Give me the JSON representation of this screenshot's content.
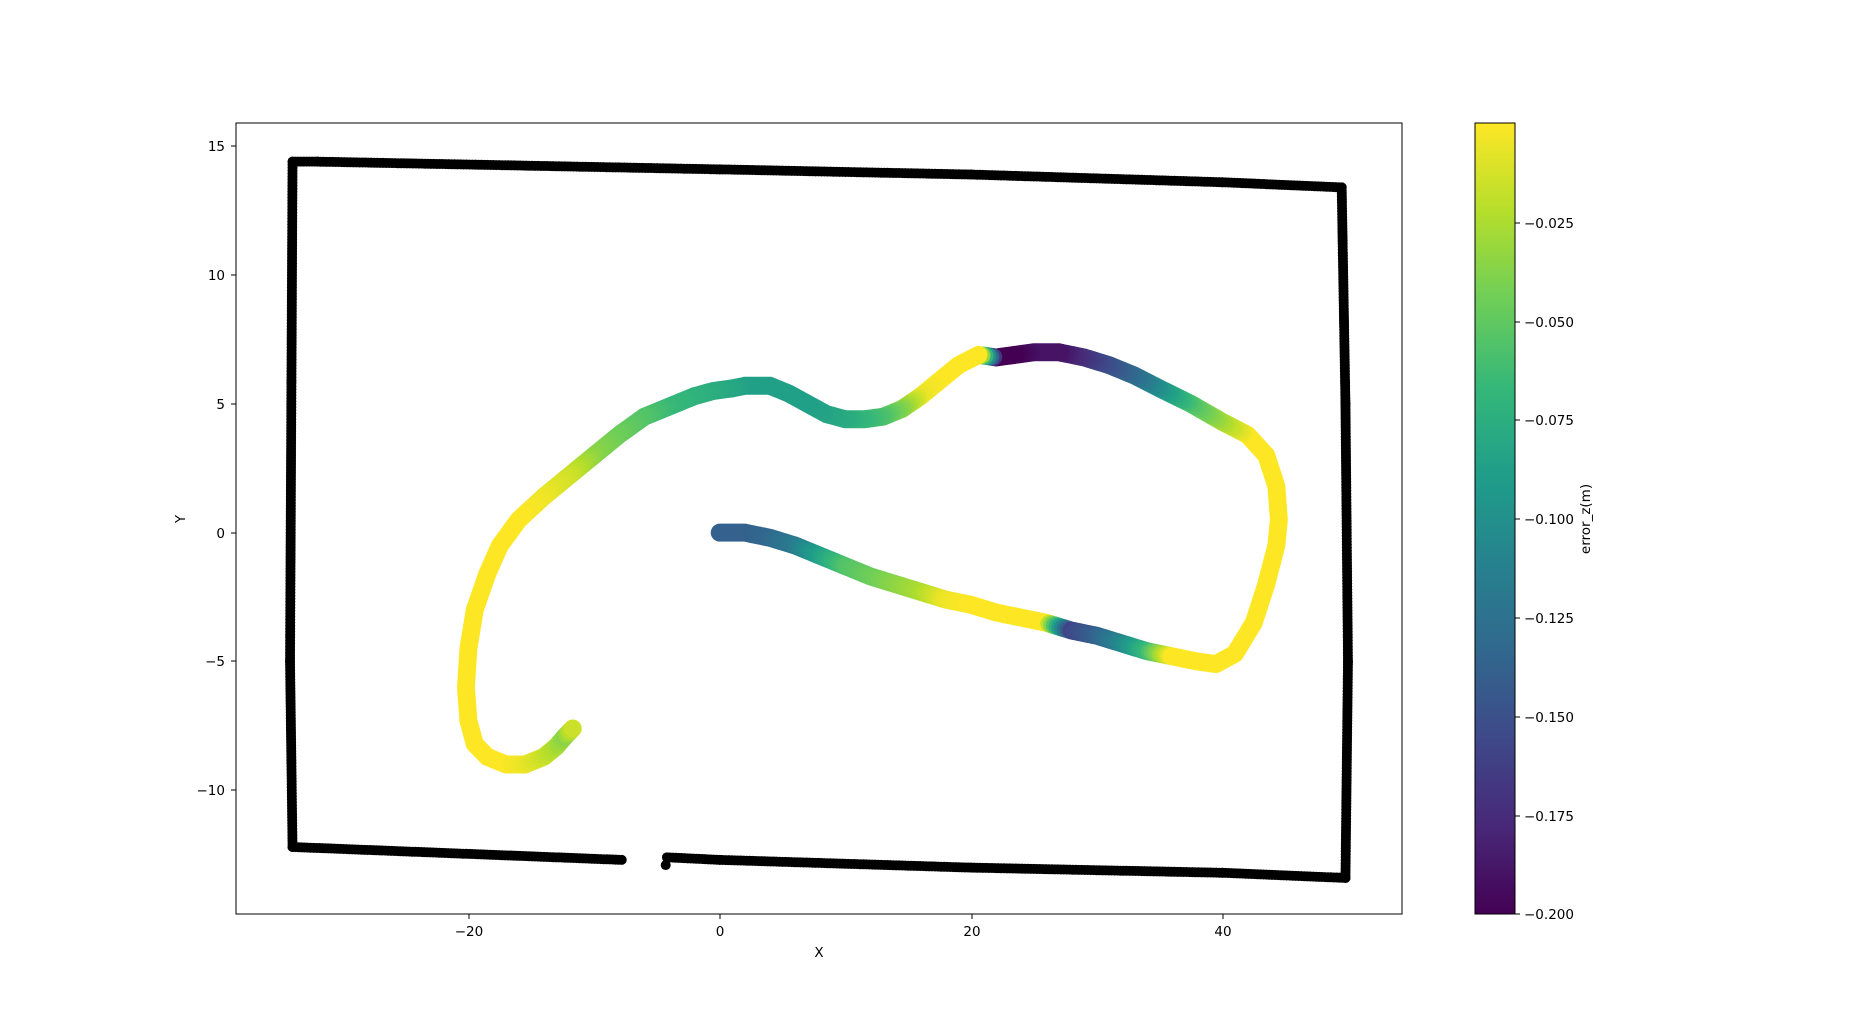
{
  "chart_data": [
    {
      "type": "scatter",
      "title": "",
      "xlabel": "X",
      "ylabel": "Y",
      "xlim": [
        -38.5,
        54.3
      ],
      "ylim": [
        -14.8,
        15.9
      ],
      "xticks": [
        -20,
        0,
        20,
        40
      ],
      "yticks": [
        -10,
        -5,
        0,
        5,
        10,
        15
      ],
      "grid": false,
      "colormap": "viridis",
      "series": [
        {
          "role": "boundary",
          "color": "#000000",
          "marker": "circle",
          "polylines": [
            {
              "x": [
                -7.8,
                -34.0,
                -34.2,
                -34.0,
                -32.0,
                0.0,
                20.0,
                40.0,
                49.5,
                49.8,
                50.0,
                49.8
              ],
              "y": [
                -12.7,
                -12.2,
                -5.0,
                14.4,
                14.4,
                14.1,
                13.9,
                13.6,
                13.4,
                5.0,
                -5.0,
                -13.4
              ]
            },
            {
              "x": [
                49.8,
                40.0,
                20.0,
                0.0,
                -4.2
              ],
              "y": [
                -13.4,
                -13.2,
                -13.0,
                -12.7,
                -12.6
              ]
            },
            {
              "x": [
                -4.3
              ],
              "y": [
                -12.9
              ]
            }
          ]
        },
        {
          "role": "trajectory",
          "colored_by": "error_z(m)",
          "x": [
            0.0,
            2.0,
            4.0,
            6.0,
            8.0,
            10.0,
            12.0,
            14.0,
            16.0,
            18.0,
            20.0,
            22.0,
            24.0,
            26.0,
            28.0,
            30.0,
            32.0,
            34.0,
            36.0,
            38.0,
            39.5,
            41.0,
            42.5,
            43.5,
            44.3,
            44.5,
            44.3,
            43.5,
            42.0,
            40.0,
            37.5,
            35.0,
            33.0,
            31.0,
            29.0,
            27.0,
            25.0,
            23.5,
            22.0,
            20.6,
            19.0,
            17.5,
            16.0,
            14.5,
            13.0,
            11.5,
            10.0,
            8.5,
            7.0,
            5.5,
            4.0,
            3.0,
            2.0,
            1.0,
            -0.5,
            -2.0,
            -4.0,
            -6.0,
            -8.0,
            -10.0,
            -12.0,
            -14.0,
            -16.0,
            -17.5,
            -18.5,
            -19.5,
            -20.0,
            -20.2,
            -20.0,
            -19.5,
            -18.5,
            -17.0,
            -15.5,
            -14.0,
            -13.0,
            -12.3,
            -11.7
          ],
          "y": [
            0.0,
            0.0,
            -0.2,
            -0.5,
            -0.9,
            -1.3,
            -1.7,
            -2.0,
            -2.3,
            -2.6,
            -2.8,
            -3.1,
            -3.3,
            -3.5,
            -3.8,
            -4.0,
            -4.3,
            -4.6,
            -4.8,
            -5.0,
            -5.1,
            -4.7,
            -3.5,
            -2.0,
            -0.5,
            0.5,
            1.8,
            3.0,
            3.8,
            4.3,
            5.0,
            5.6,
            6.1,
            6.5,
            6.8,
            7.0,
            7.0,
            6.9,
            6.8,
            6.9,
            6.5,
            5.9,
            5.3,
            4.8,
            4.5,
            4.4,
            4.4,
            4.6,
            5.0,
            5.4,
            5.7,
            5.7,
            5.7,
            5.6,
            5.5,
            5.3,
            4.9,
            4.5,
            3.8,
            3.0,
            2.2,
            1.4,
            0.5,
            -0.5,
            -1.6,
            -3.0,
            -4.5,
            -6.0,
            -7.3,
            -8.2,
            -8.7,
            -9.0,
            -9.0,
            -8.7,
            -8.3,
            -7.9,
            -7.6
          ],
          "values": [
            -0.14,
            -0.14,
            -0.135,
            -0.12,
            -0.09,
            -0.06,
            -0.05,
            -0.04,
            -0.03,
            -0.01,
            -0.005,
            -0.005,
            -0.005,
            -0.005,
            -0.16,
            -0.14,
            -0.11,
            -0.07,
            -0.005,
            -0.005,
            -0.005,
            -0.005,
            -0.005,
            -0.005,
            -0.005,
            -0.005,
            -0.005,
            -0.005,
            -0.005,
            -0.03,
            -0.06,
            -0.1,
            -0.13,
            -0.15,
            -0.17,
            -0.19,
            -0.19,
            -0.2,
            -0.2,
            -0.005,
            -0.005,
            -0.005,
            -0.01,
            -0.04,
            -0.06,
            -0.07,
            -0.08,
            -0.085,
            -0.09,
            -0.09,
            -0.09,
            -0.09,
            -0.09,
            -0.085,
            -0.08,
            -0.075,
            -0.07,
            -0.06,
            -0.05,
            -0.04,
            -0.02,
            -0.01,
            -0.005,
            -0.005,
            -0.005,
            -0.005,
            -0.005,
            -0.005,
            -0.005,
            -0.005,
            -0.005,
            -0.005,
            -0.01,
            -0.02,
            -0.03,
            -0.04,
            -0.02
          ]
        }
      ],
      "colorbar": {
        "label": "error_z(m)",
        "vmin": -0.2,
        "vmax": -0.005,
        "ticks": [
          -0.025,
          -0.05,
          -0.075,
          -0.1,
          -0.125,
          -0.15,
          -0.175,
          -0.2
        ],
        "tick_labels": [
          "−0.025",
          "−0.050",
          "−0.075",
          "−0.100",
          "−0.125",
          "−0.150",
          "−0.175",
          "−0.200"
        ],
        "stops": [
          "#440154",
          "#482878",
          "#3e4989",
          "#31688e",
          "#26828e",
          "#1f9e89",
          "#35b779",
          "#6ece58",
          "#b5de2b",
          "#fde725"
        ]
      }
    }
  ],
  "xtick_labels": [
    "−20",
    "0",
    "20",
    "40"
  ],
  "ytick_labels": [
    "−10",
    "−5",
    "0",
    "5",
    "10",
    "15"
  ]
}
